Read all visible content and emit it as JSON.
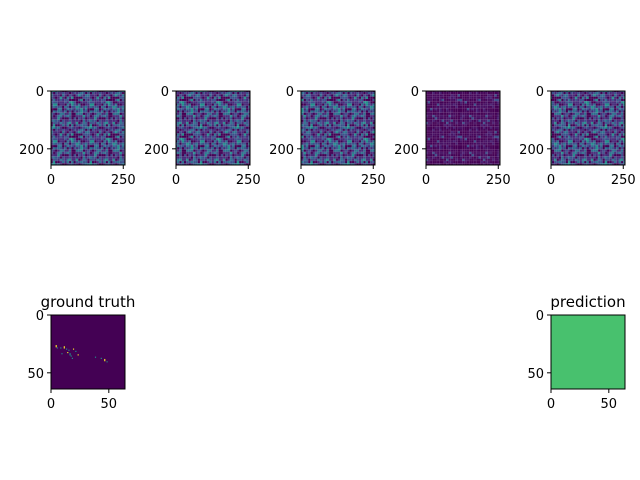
{
  "chart_data": [
    {
      "type": "heatmap",
      "title": "",
      "xticks": [
        "0",
        "250"
      ],
      "yticks": [
        "0",
        "200"
      ],
      "xlim": [
        0,
        256
      ],
      "ylim": [
        256,
        0
      ],
      "colormap": "viridis",
      "pattern": "noise"
    },
    {
      "type": "heatmap",
      "title": "",
      "xticks": [
        "0",
        "250"
      ],
      "yticks": [
        "0",
        "200"
      ],
      "xlim": [
        0,
        256
      ],
      "ylim": [
        256,
        0
      ],
      "colormap": "viridis",
      "pattern": "noise"
    },
    {
      "type": "heatmap",
      "title": "",
      "xticks": [
        "0",
        "250"
      ],
      "yticks": [
        "0",
        "200"
      ],
      "xlim": [
        0,
        256
      ],
      "ylim": [
        256,
        0
      ],
      "colormap": "viridis",
      "pattern": "noise"
    },
    {
      "type": "heatmap",
      "title": "",
      "xticks": [
        "0",
        "250"
      ],
      "yticks": [
        "0",
        "200"
      ],
      "xlim": [
        0,
        256
      ],
      "ylim": [
        256,
        0
      ],
      "colormap": "viridis",
      "pattern": "dark-noise"
    },
    {
      "type": "heatmap",
      "title": "",
      "xticks": [
        "0",
        "250"
      ],
      "yticks": [
        "0",
        "200"
      ],
      "xlim": [
        0,
        256
      ],
      "ylim": [
        256,
        0
      ],
      "colormap": "viridis",
      "pattern": "noise"
    },
    {
      "type": "heatmap",
      "title": "ground truth",
      "xticks": [
        "0",
        "50"
      ],
      "yticks": [
        "0",
        "50"
      ],
      "xlim": [
        0,
        64
      ],
      "ylim": [
        64,
        0
      ],
      "colormap": "viridis",
      "pattern": "sparse-mask"
    },
    {
      "type": "heatmap",
      "title": "prediction",
      "xticks": [
        "0",
        "50"
      ],
      "yticks": [
        "0",
        "50"
      ],
      "xlim": [
        0,
        64
      ],
      "ylim": [
        64,
        0
      ],
      "colormap": "viridis",
      "pattern": "uniform"
    }
  ],
  "colors": {
    "viridis_dark": "#440154",
    "viridis_blue": "#3b528b",
    "viridis_teal": "#21918c",
    "viridis_green": "#5ec962",
    "viridis_yellow": "#fde725",
    "prediction_fill": "#48c16e",
    "axis": "#000000"
  }
}
